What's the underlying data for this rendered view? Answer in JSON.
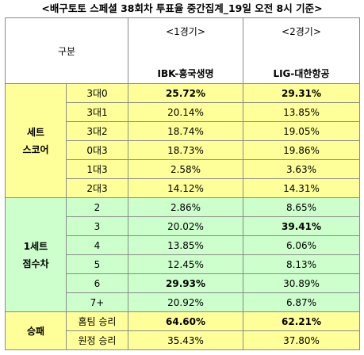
{
  "title": "<배구토토 스페셜 38회차 투표율 중간집계_19일 오전 8시 기준>",
  "header": {
    "category_label": "구분",
    "games": [
      {
        "label": "<1경기>",
        "team": "IBK-흥국생명"
      },
      {
        "label": "<2경기>",
        "team": "LIG-대한항공"
      }
    ]
  },
  "sections": [
    {
      "name_line1": "세트",
      "name_line2": "스코어",
      "color": "#ffff99",
      "rows": [
        {
          "label": "3대0",
          "g1": "25.72%",
          "g2": "29.31%",
          "g1_bold": true,
          "g2_bold": true
        },
        {
          "label": "3대1",
          "g1": "20.14%",
          "g2": "13.85%",
          "g1_bold": false,
          "g2_bold": false
        },
        {
          "label": "3대2",
          "g1": "18.74%",
          "g2": "19.05%",
          "g1_bold": false,
          "g2_bold": false
        },
        {
          "label": "0대3",
          "g1": "18.73%",
          "g2": "19.86%",
          "g1_bold": false,
          "g2_bold": false
        },
        {
          "label": "1대3",
          "g1": "2.58%",
          "g2": "3.63%",
          "g1_bold": false,
          "g2_bold": false
        },
        {
          "label": "2대3",
          "g1": "14.12%",
          "g2": "14.31%",
          "g1_bold": false,
          "g2_bold": false
        }
      ]
    },
    {
      "name_line1": "1세트",
      "name_line2": "점수차",
      "color": "#ccffcc",
      "rows": [
        {
          "label": "2",
          "g1": "2.86%",
          "g2": "8.65%",
          "g1_bold": false,
          "g2_bold": false
        },
        {
          "label": "3",
          "g1": "20.02%",
          "g2": "39.41%",
          "g1_bold": false,
          "g2_bold": true
        },
        {
          "label": "4",
          "g1": "13.85%",
          "g2": "6.06%",
          "g1_bold": false,
          "g2_bold": false
        },
        {
          "label": "5",
          "g1": "12.45%",
          "g2": "8.13%",
          "g1_bold": false,
          "g2_bold": false
        },
        {
          "label": "6",
          "g1": "29.93%",
          "g2": "30.89%",
          "g1_bold": true,
          "g2_bold": false
        },
        {
          "label": "7+",
          "g1": "20.92%",
          "g2": "6.87%",
          "g1_bold": false,
          "g2_bold": false
        }
      ]
    },
    {
      "name_line1": "승패",
      "name_line2": "",
      "color": "#ffff99",
      "rows": [
        {
          "label": "홈팀 승리",
          "g1": "64.60%",
          "g2": "62.21%",
          "g1_bold": true,
          "g2_bold": true
        },
        {
          "label": "원정 승리",
          "g1": "35.43%",
          "g2": "37.80%",
          "g1_bold": false,
          "g2_bold": false
        }
      ]
    }
  ]
}
